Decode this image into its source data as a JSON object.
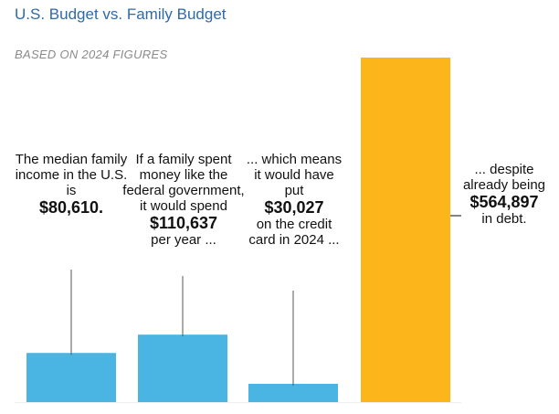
{
  "title": "U.S. Budget vs. Family Budget",
  "subtitle": "BASED ON 2024 FIGURES",
  "chart_data": {
    "type": "bar",
    "categories": [
      "median family income",
      "family spending like federal government",
      "credit card debt added in 2024",
      "existing debt"
    ],
    "values": [
      80610,
      110637,
      30027,
      564897
    ],
    "colors": [
      "#4ab4e2",
      "#4ab4e2",
      "#4ab4e2",
      "#fcb61c"
    ],
    "ylim": [
      0,
      564897
    ],
    "grid": false,
    "annotations": [
      {
        "pre": "The median family income in the U.S. is",
        "value": "$80,610.",
        "post": ""
      },
      {
        "pre": "If a family spent money like the federal government, it would spend",
        "value": "$110,637",
        "post": "per year ..."
      },
      {
        "pre": "... which means it would have put",
        "value": "$30,027",
        "post": "on the credit card in 2024 ..."
      },
      {
        "pre": "... despite already being",
        "value": "$564,897",
        "post": "in debt."
      }
    ]
  }
}
